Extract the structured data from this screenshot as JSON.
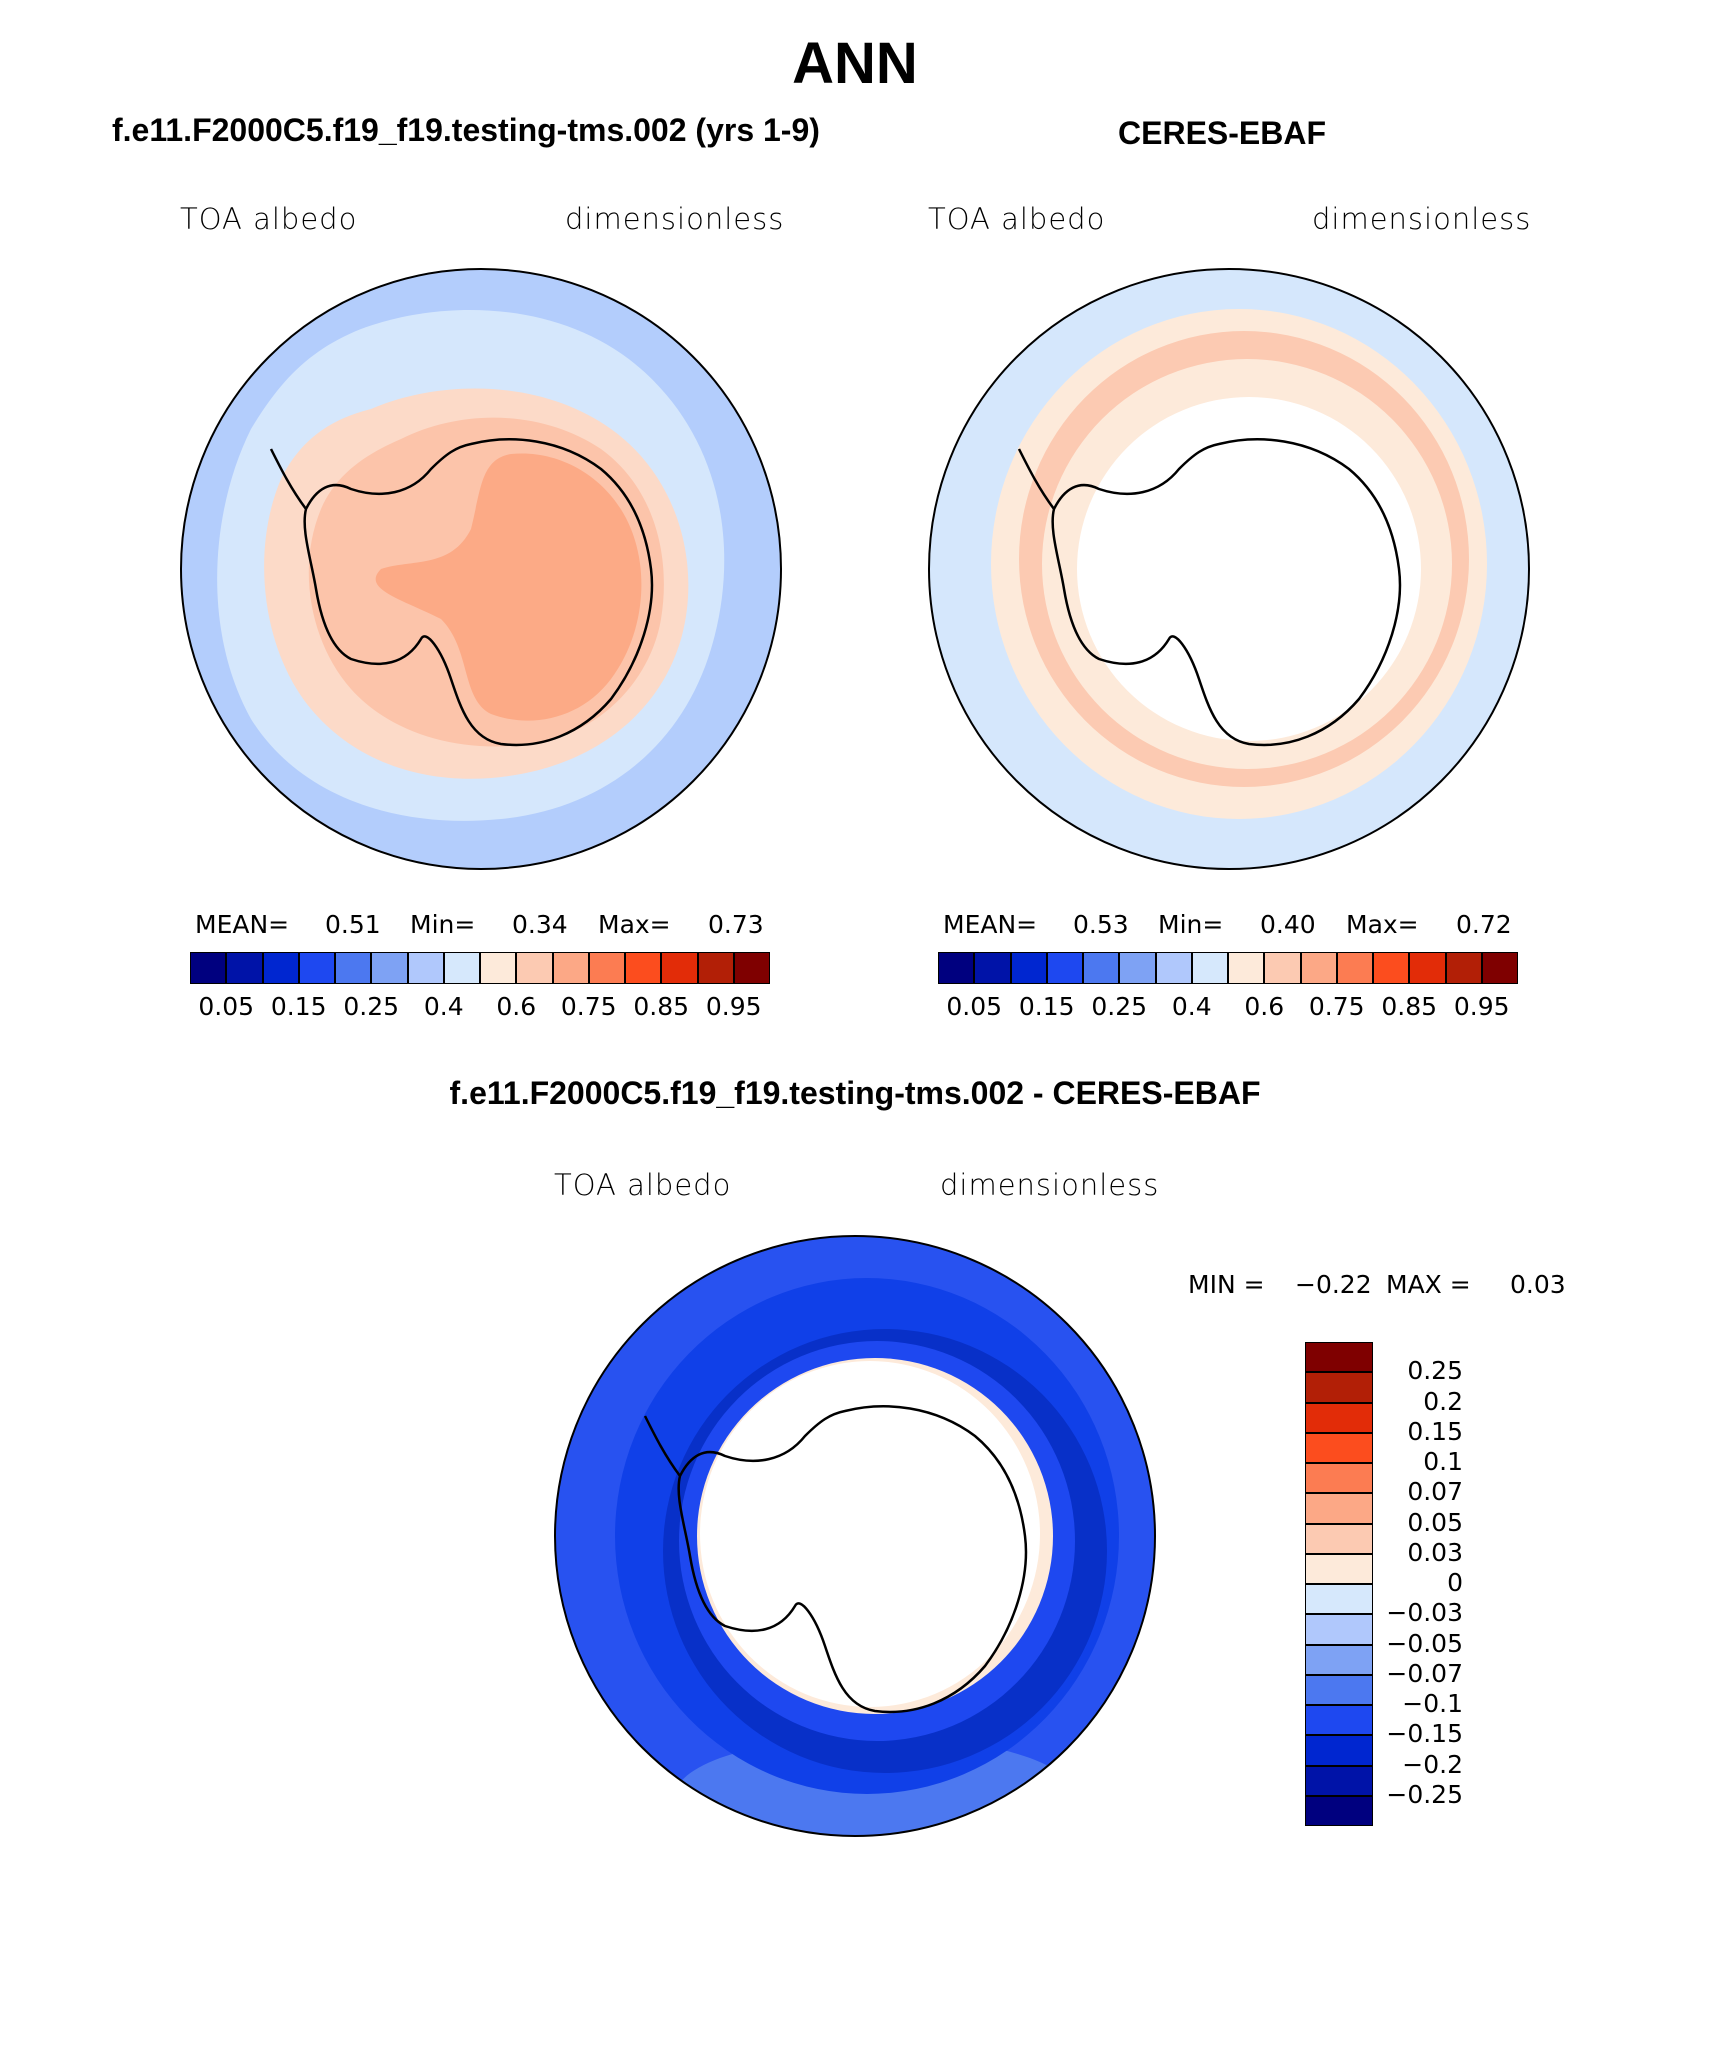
{
  "figure_title": "ANN",
  "panels": [
    {
      "title": "f.e11.F2000C5.f19_f19.testing-tms.002 (yrs 1-9)",
      "variable": "TOA albedo",
      "units": "dimensionless",
      "stats": {
        "mean_label": "MEAN=",
        "mean": "0.51",
        "min_label": "Min=",
        "min": "0.34",
        "max_label": "Max=",
        "max": "0.73"
      },
      "colorbar_ticks": [
        "0.05",
        "0.15",
        "0.25",
        "0.4",
        "0.6",
        "0.75",
        "0.85",
        "0.95"
      ]
    },
    {
      "title": "CERES-EBAF",
      "variable": "TOA albedo",
      "units": "dimensionless",
      "stats": {
        "mean_label": "MEAN=",
        "mean": "0.53",
        "min_label": "Min=",
        "min": "0.40",
        "max_label": "Max=",
        "max": "0.72"
      },
      "colorbar_ticks": [
        "0.05",
        "0.15",
        "0.25",
        "0.4",
        "0.6",
        "0.75",
        "0.85",
        "0.95"
      ]
    },
    {
      "title": "f.e11.F2000C5.f19_f19.testing-tms.002 - CERES-EBAF",
      "variable": "TOA albedo",
      "units": "dimensionless",
      "stats": {
        "min_label": "MIN =",
        "min": "−0.22",
        "max_label": "MAX =",
        "max": "0.03"
      },
      "colorbar_ticks": [
        "0.25",
        "0.2",
        "0.15",
        "0.1",
        "0.07",
        "0.05",
        "0.03",
        "0",
        "−0.03",
        "−0.05",
        "−0.07",
        "−0.1",
        "−0.15",
        "−0.2",
        "−0.25"
      ]
    }
  ],
  "colors": {
    "scale16": [
      "#00007f",
      "#0013a8",
      "#0026d0",
      "#1e48f0",
      "#4c78f0",
      "#7ea2f4",
      "#b0c8fc",
      "#d6e8fc",
      "#fdeada",
      "#fccab2",
      "#fca886",
      "#fc7c52",
      "#fc4d1e",
      "#e22c08",
      "#b21f06",
      "#7f0000"
    ],
    "ocean_model": "#b3cdfc",
    "ocean_model_light": "#d5e7fc",
    "ice_model": "#fcdac8",
    "land_model": "#fcc4aa",
    "interior_model": "#fcaa86",
    "ocean_obs": "#d5e7fc",
    "ring_obs": "#fdeada",
    "ring_obs_dark": "#fccab2",
    "diff_outer": "#2852f0",
    "diff_mid": "#1040e8",
    "diff_inner": "#0830c8",
    "diff_light": "#7ea2f4",
    "diff_pos": "#fdeada"
  }
}
